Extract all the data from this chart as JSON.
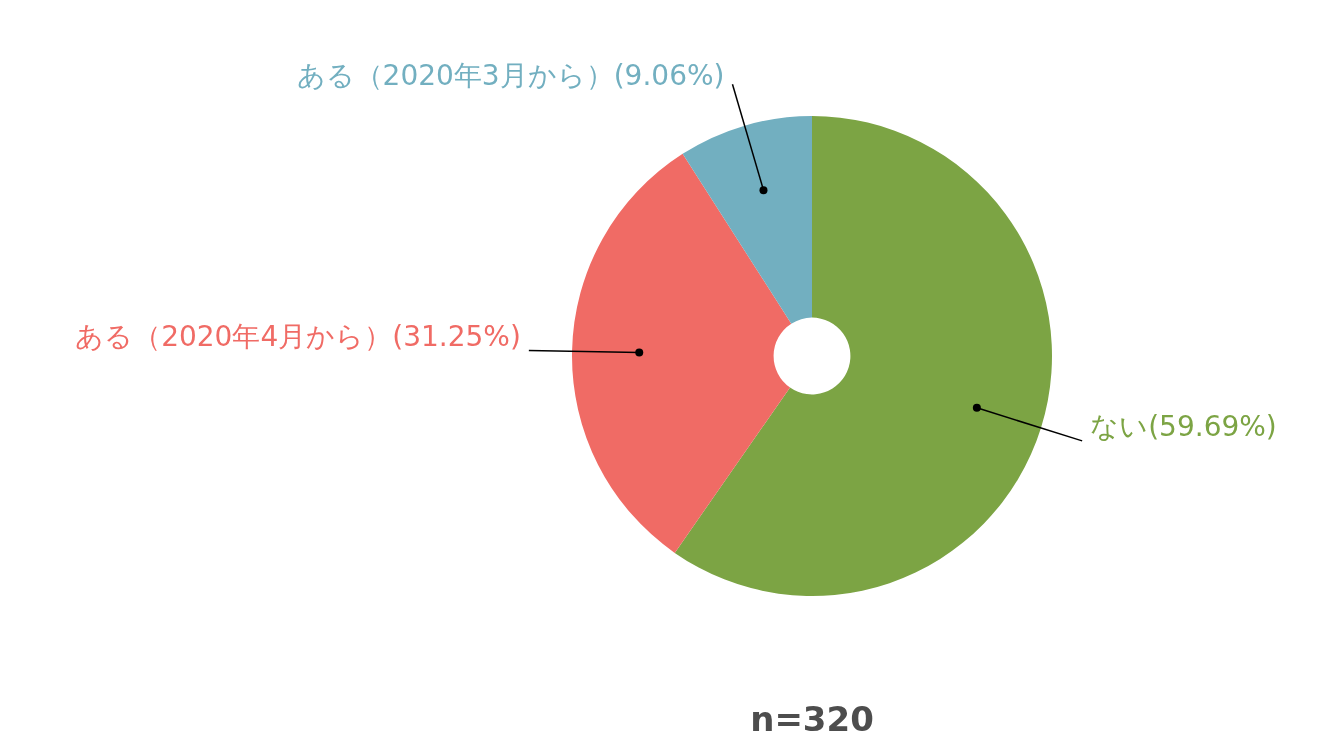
{
  "chart_data": {
    "type": "donut",
    "categories": [
      "ない",
      "ある（2020年4月から）",
      "ある（2020年3月から）"
    ],
    "values": [
      59.69,
      31.25,
      9.06
    ],
    "value_labels": [
      "(59.69%)",
      "(31.25%)",
      "(9.06%)"
    ],
    "colors": [
      "#7ca444",
      "#f06b65",
      "#72afc0"
    ],
    "legend": false,
    "annotations": [
      "n=320"
    ]
  }
}
